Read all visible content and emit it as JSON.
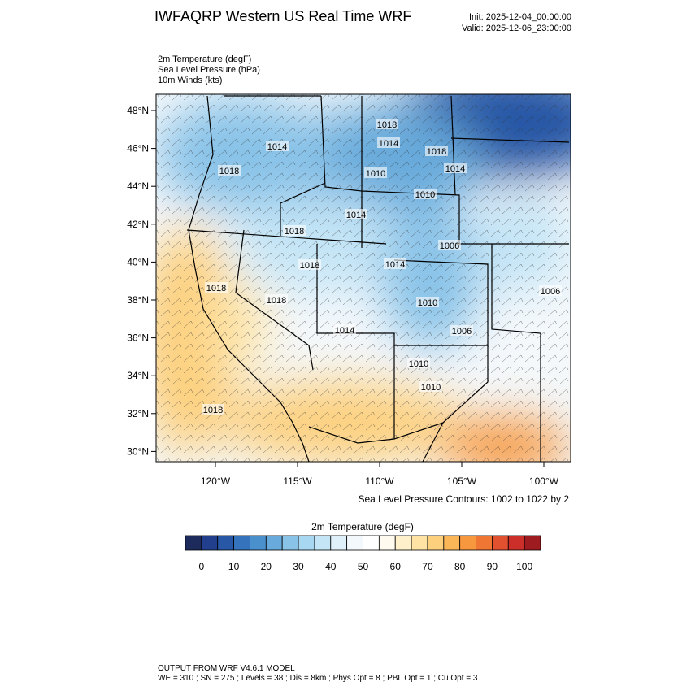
{
  "header": {
    "title": "IWFAQRP Western US Real Time WRF",
    "init": "Init: 2025-12-04_00:00:00",
    "valid": "Valid: 2025-12-06_23:00:00"
  },
  "fields": [
    "2m Temperature   (degF)",
    "Sea Level Pressure   (hPa)",
    "10m Winds   (kts)"
  ],
  "map": {
    "lat_labels": [
      "48°N",
      "46°N",
      "44°N",
      "42°N",
      "40°N",
      "38°N",
      "36°N",
      "34°N",
      "32°N",
      "30°N"
    ],
    "lon_labels": [
      "120°W",
      "115°W",
      "110°W",
      "105°W",
      "100°W"
    ],
    "contour_labels": [
      "1018",
      "1014",
      "1014",
      "1018",
      "1018",
      "1010",
      "1014",
      "1010",
      "1014",
      "1018",
      "1006",
      "1018",
      "1014",
      "1018",
      "1018",
      "1006",
      "1010",
      "1014",
      "1006",
      "1010",
      "1010",
      "1018"
    ],
    "contour_note": "Sea Level Pressure Contours: 1002 to 1022 by 2"
  },
  "colorbar": {
    "title": "2m Temperature  (degF)",
    "labels": [
      "0",
      "10",
      "20",
      "30",
      "40",
      "50",
      "60",
      "70",
      "80",
      "90",
      "100"
    ],
    "colors": [
      "#1c2a5c",
      "#213f8c",
      "#2757a5",
      "#3574bd",
      "#4a90cd",
      "#67aadb",
      "#89c3e8",
      "#a8d7f2",
      "#c4e5f6",
      "#dff0fa",
      "#f2f8fc",
      "#ffffff",
      "#fffaf0",
      "#fff0cc",
      "#fee3a4",
      "#fdd07e",
      "#fbb657",
      "#f7983f",
      "#f07634",
      "#e2512f",
      "#cc2f29",
      "#9e1b1f"
    ]
  },
  "footer": {
    "line1": "OUTPUT FROM WRF V4.6.1 MODEL",
    "line2": "WE = 310 ; SN = 275 ; Levels = 38 ; Dis = 8km ; Phys Opt = 8 ; PBL Opt = 1 ; Cu Opt = 3"
  }
}
